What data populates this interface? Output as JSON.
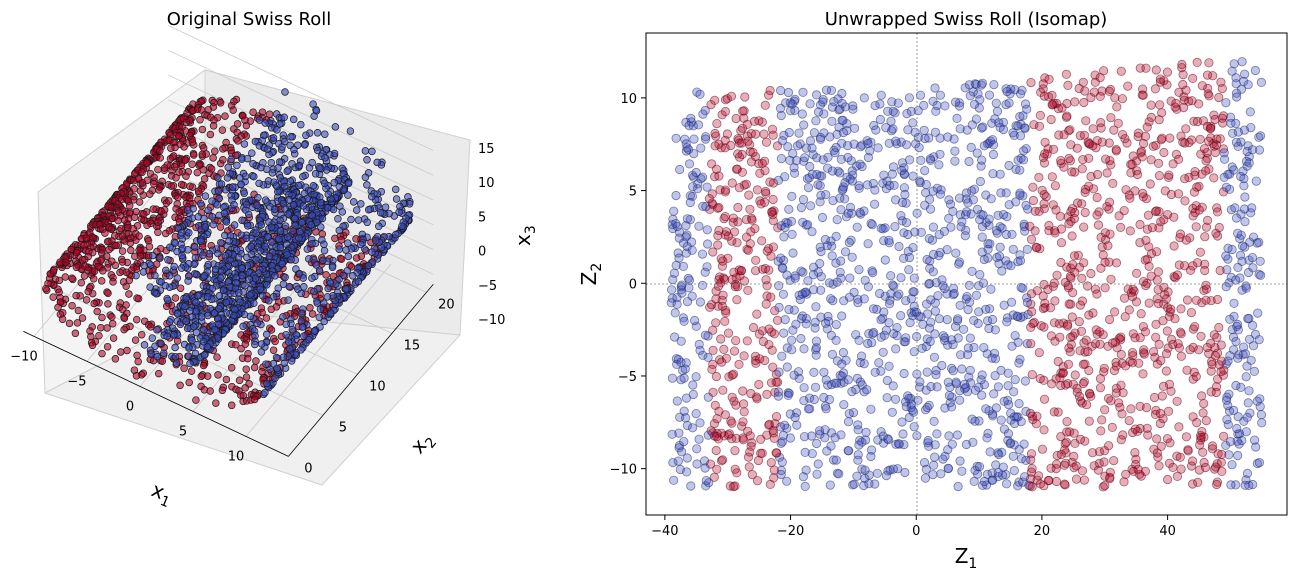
{
  "colors": {
    "low": "#3b4cc0",
    "high": "#b40426",
    "axis": "#000000",
    "pane": "#f2f2f2",
    "grid3d": "#c8c8c8",
    "refline": "#808080"
  },
  "chart_data": [
    {
      "type": "scatter3d",
      "title": "Original Swiss Roll",
      "xlabel": "x1",
      "ylabel": "x2",
      "zlabel": "x3",
      "xlim": [
        -11,
        14
      ],
      "ylim": [
        0,
        21
      ],
      "zlim": [
        -12,
        15
      ],
      "xticks": [
        -10,
        -5,
        0,
        5,
        10
      ],
      "yticks": [
        0,
        5,
        10,
        15,
        20
      ],
      "zticks": [
        -10,
        -5,
        0,
        5,
        10,
        15
      ],
      "colormap": "coolwarm",
      "color_by": "two groups (blue outer turns, red inner turn)",
      "n_points_approx": 2500,
      "marker": "circle, black edge",
      "grid": true
    },
    {
      "type": "scatter",
      "title": "Unwrapped Swiss Roll (Isomap)",
      "xlabel": "Z1",
      "ylabel": "Z2",
      "xlim": [
        -43,
        59
      ],
      "ylim": [
        -12.5,
        13.5
      ],
      "xticks": [
        -40,
        -20,
        0,
        20,
        40
      ],
      "yticks": [
        -10,
        -5,
        0,
        5,
        10
      ],
      "reference_lines": {
        "x": 0,
        "y": 0,
        "style": "dotted gray"
      },
      "colormap": "coolwarm",
      "alpha": 0.35,
      "n_points_approx": 2500,
      "bands": [
        {
          "x_range": [
            -39,
            -33
          ],
          "group": "low"
        },
        {
          "x_range": [
            -33,
            -22
          ],
          "group": "high"
        },
        {
          "x_range": [
            -22,
            18
          ],
          "group": "low"
        },
        {
          "x_range": [
            18,
            49
          ],
          "group": "high"
        },
        {
          "x_range": [
            49,
            55
          ],
          "group": "low"
        }
      ],
      "grid": false
    }
  ]
}
